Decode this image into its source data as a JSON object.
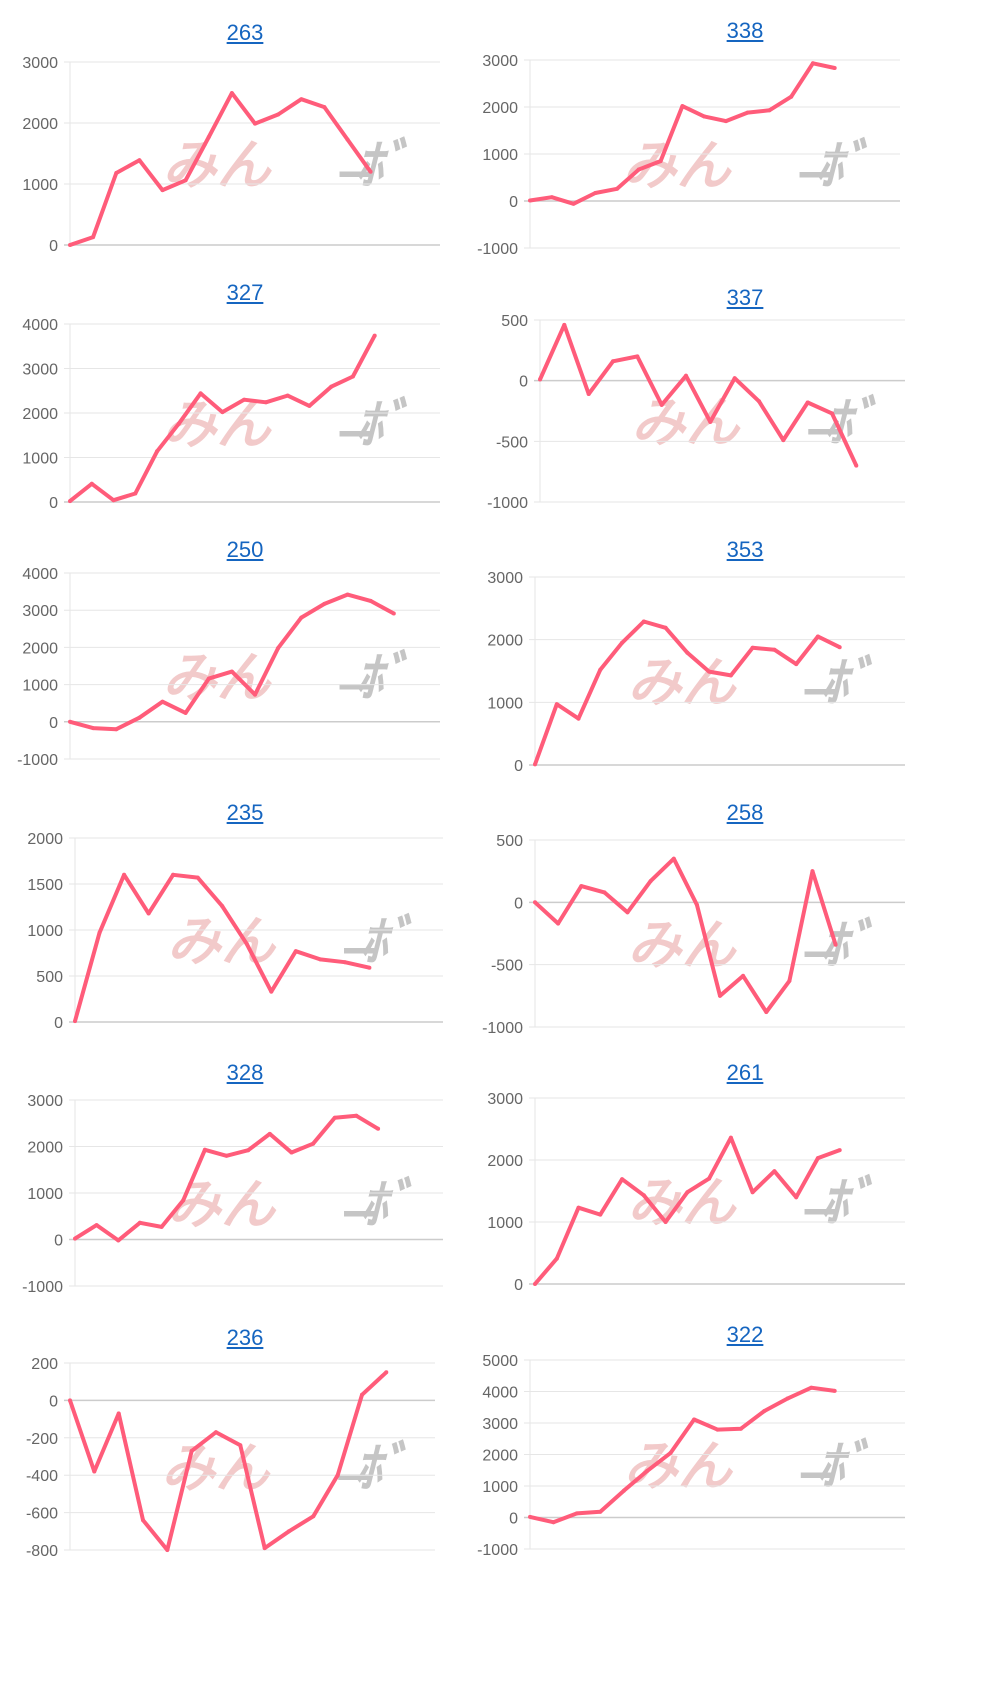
{
  "watermark": {
    "part_a": "みん",
    "part_b": "ﾄﾞ̶ﾎﾞ",
    "color_a": "#e8a0a0",
    "color_b": "#a0a0a0"
  },
  "style": {
    "line_color": "#ff5c7a",
    "grid_color": "#e6e6e6",
    "axis_color": "#cccccc",
    "title_color": "#1565c0"
  },
  "chart_data": [
    {
      "type": "line",
      "title": "263",
      "ylim": [
        0,
        3000
      ],
      "yticks": [
        0,
        1000,
        2000,
        3000
      ],
      "values": [
        0,
        130,
        1180,
        1390,
        900,
        1060,
        1770,
        2490,
        1990,
        2140,
        2390,
        2260,
        1730,
        1200
      ]
    },
    {
      "type": "line",
      "title": "338",
      "ylim": [
        -1000,
        3000
      ],
      "yticks": [
        -1000,
        0,
        1000,
        2000,
        3000
      ],
      "values": [
        10,
        80,
        -60,
        170,
        260,
        670,
        850,
        2020,
        1800,
        1700,
        1880,
        1930,
        2220,
        2930,
        2830
      ]
    },
    {
      "type": "line",
      "title": "327",
      "ylim": [
        0,
        4000
      ],
      "yticks": [
        0,
        1000,
        2000,
        3000,
        4000
      ],
      "values": [
        20,
        410,
        40,
        190,
        1140,
        1760,
        2440,
        2020,
        2300,
        2240,
        2390,
        2160,
        2590,
        2820,
        3740
      ]
    },
    {
      "type": "line",
      "title": "337",
      "ylim": [
        -1000,
        500
      ],
      "yticks": [
        -1000,
        -500,
        0,
        500
      ],
      "values": [
        10,
        460,
        -110,
        160,
        200,
        -200,
        40,
        -340,
        20,
        -170,
        -490,
        -180,
        -270,
        -700
      ]
    },
    {
      "type": "line",
      "title": "250",
      "ylim": [
        -1000,
        4000
      ],
      "yticks": [
        -1000,
        0,
        1000,
        2000,
        3000,
        4000
      ],
      "values": [
        0,
        -170,
        -200,
        110,
        540,
        240,
        1160,
        1350,
        730,
        1980,
        2800,
        3170,
        3420,
        3250,
        2910
      ]
    },
    {
      "type": "line",
      "title": "353",
      "ylim": [
        0,
        3000
      ],
      "yticks": [
        0,
        1000,
        2000,
        3000
      ],
      "values": [
        10,
        970,
        740,
        1520,
        1950,
        2290,
        2190,
        1790,
        1490,
        1430,
        1870,
        1840,
        1610,
        2050,
        1880
      ]
    },
    {
      "type": "line",
      "title": "235",
      "ylim": [
        0,
        2000
      ],
      "yticks": [
        0,
        500,
        1000,
        1500,
        2000
      ],
      "values": [
        10,
        970,
        1600,
        1180,
        1600,
        1570,
        1260,
        850,
        330,
        770,
        680,
        650,
        590
      ]
    },
    {
      "type": "line",
      "title": "258",
      "ylim": [
        -1000,
        500
      ],
      "yticks": [
        -1000,
        -500,
        0,
        500
      ],
      "values": [
        0,
        -170,
        130,
        80,
        -80,
        170,
        350,
        -20,
        -750,
        -590,
        -880,
        -630,
        250,
        -340
      ]
    },
    {
      "type": "line",
      "title": "328",
      "ylim": [
        -1000,
        3000
      ],
      "yticks": [
        -1000,
        0,
        1000,
        2000,
        3000
      ],
      "values": [
        20,
        310,
        -20,
        360,
        270,
        840,
        1930,
        1800,
        1920,
        2270,
        1870,
        2060,
        2620,
        2660,
        2380
      ]
    },
    {
      "type": "line",
      "title": "261",
      "ylim": [
        0,
        3000
      ],
      "yticks": [
        0,
        1000,
        2000,
        3000
      ],
      "values": [
        0,
        410,
        1230,
        1120,
        1690,
        1430,
        1000,
        1480,
        1700,
        2360,
        1480,
        1820,
        1400,
        2030,
        2160
      ]
    },
    {
      "type": "line",
      "title": "236",
      "ylim": [
        -800,
        200
      ],
      "yticks": [
        -800,
        -600,
        -400,
        -200,
        0,
        200
      ],
      "values": [
        0,
        -380,
        -70,
        -640,
        -800,
        -270,
        -170,
        -240,
        -790,
        -700,
        -620,
        -400,
        30,
        150
      ]
    },
    {
      "type": "line",
      "title": "322",
      "ylim": [
        -1000,
        5000
      ],
      "yticks": [
        -1000,
        0,
        1000,
        2000,
        3000,
        4000,
        5000
      ],
      "values": [
        20,
        -150,
        130,
        180,
        850,
        1480,
        2050,
        3110,
        2790,
        2820,
        3380,
        3780,
        4120,
        4020
      ]
    }
  ]
}
